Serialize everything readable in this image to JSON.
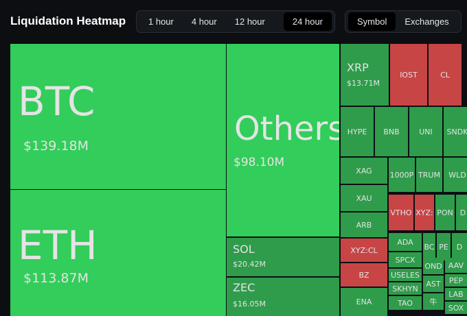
{
  "header": {
    "title": "Liquidation Heatmap",
    "time_tabs": [
      "1 hour",
      "4 hour",
      "12 hour",
      "24 hour"
    ],
    "view_tabs": [
      "Symbol",
      "Exchanges"
    ]
  },
  "treemap": {
    "cells": [
      {
        "label": "BTC",
        "value": "$139.18M"
      },
      {
        "label": "ETH",
        "value": "$113.87M"
      },
      {
        "label": "Others",
        "value": "$98.10M"
      },
      {
        "label": "SOL",
        "value": "$20.42M"
      },
      {
        "label": "ZEC",
        "value": "$16.05M"
      },
      {
        "label": "XRP",
        "value": "$13.71M"
      },
      {
        "label": "IOST"
      },
      {
        "label": "CL"
      },
      {
        "label": "HYPE"
      },
      {
        "label": "BNB"
      },
      {
        "label": "UNI"
      },
      {
        "label": "SNDK"
      },
      {
        "label": "XAG"
      },
      {
        "label": "XAU"
      },
      {
        "label": "ARB"
      },
      {
        "label": "XYZ:CL"
      },
      {
        "label": "BZ"
      },
      {
        "label": "ENA"
      },
      {
        "label": "1000P"
      },
      {
        "label": "TRUM"
      },
      {
        "label": "WLD"
      },
      {
        "label": "VTHO"
      },
      {
        "label": "XYZ:"
      },
      {
        "label": "PON"
      },
      {
        "label": "D"
      },
      {
        "label": "ADA"
      },
      {
        "label": "BC"
      },
      {
        "label": "PE"
      },
      {
        "label": "D"
      },
      {
        "label": "SPCX"
      },
      {
        "label": "OND"
      },
      {
        "label": "AAV"
      },
      {
        "label": "USELES"
      },
      {
        "label": "PEP"
      },
      {
        "label": "SKHYN"
      },
      {
        "label": "AST"
      },
      {
        "label": "LAB"
      },
      {
        "label": "TAO"
      },
      {
        "label": "牛"
      },
      {
        "label": "SOX"
      }
    ]
  }
}
